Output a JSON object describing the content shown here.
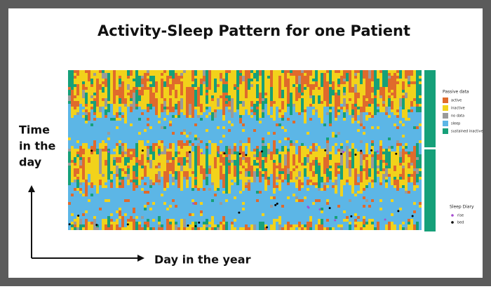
{
  "title": "Activity-Sleep Pattern for one Patient",
  "y_label": [
    "Time",
    "in the",
    "day"
  ],
  "x_label": "Day in the year",
  "legend": {
    "title": "Passive data",
    "items": [
      {
        "label": "active",
        "color": "#e06a2c"
      },
      {
        "label": "inactive",
        "color": "#f2d21b"
      },
      {
        "label": "no data",
        "color": "#9a9a9a"
      },
      {
        "label": "sleep",
        "color": "#5cb6e6"
      },
      {
        "label": "sustained inactive",
        "color": "#16a079"
      }
    ]
  },
  "sleep_diary": {
    "title": "Sleep Diary",
    "items": [
      {
        "label": "rise",
        "color": "#a64bd1"
      },
      {
        "label": "bed",
        "color": "#000000"
      }
    ]
  }
}
